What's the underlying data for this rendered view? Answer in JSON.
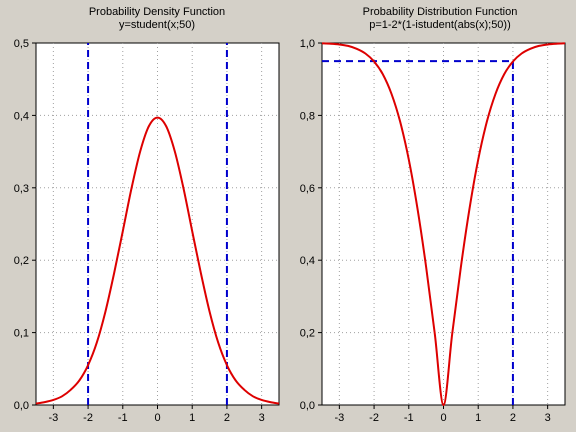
{
  "chart_data": [
    {
      "type": "line",
      "title": "Probability Density Function",
      "subtitle": "y=student(x;50)",
      "xlabel": "",
      "ylabel": "",
      "xlim": [
        -3.5,
        3.5
      ],
      "ylim": [
        0,
        0.5
      ],
      "xticks": [
        -3,
        -2,
        -1,
        0,
        1,
        2,
        3
      ],
      "xtick_labels": [
        "-3",
        "-2",
        "-1",
        "0",
        "1",
        "2",
        "3"
      ],
      "yticks": [
        0,
        0.1,
        0.2,
        0.3,
        0.4,
        0.5
      ],
      "ytick_labels": [
        "0,0",
        "0,1",
        "0,2",
        "0,3",
        "0,4",
        "0,5"
      ],
      "grid": true,
      "series": [
        {
          "color": "#dd0000",
          "x": [
            -3.5,
            -3.25,
            -3.0,
            -2.75,
            -2.5,
            -2.25,
            -2.0,
            -1.75,
            -1.5,
            -1.25,
            -1.0,
            -0.75,
            -0.5,
            -0.25,
            0.0,
            0.25,
            0.5,
            0.75,
            1.0,
            1.25,
            1.5,
            1.75,
            2.0,
            2.25,
            2.5,
            2.75,
            3.0,
            3.25,
            3.5
          ],
          "y": [
            0.002,
            0.004,
            0.007,
            0.012,
            0.021,
            0.034,
            0.055,
            0.086,
            0.129,
            0.182,
            0.24,
            0.299,
            0.35,
            0.385,
            0.397,
            0.385,
            0.35,
            0.299,
            0.24,
            0.182,
            0.129,
            0.086,
            0.055,
            0.034,
            0.021,
            0.012,
            0.007,
            0.004,
            0.002
          ]
        }
      ],
      "reference_lines": [
        {
          "orientation": "vertical",
          "x": -2.0,
          "color": "#0000cc",
          "style": "dashed"
        },
        {
          "orientation": "vertical",
          "x": 2.0,
          "color": "#0000cc",
          "style": "dashed"
        }
      ]
    },
    {
      "type": "line",
      "title": "Probability Distribution Function",
      "subtitle": "p=1-2*(1-istudent(abs(x);50))",
      "xlabel": "",
      "ylabel": "",
      "xlim": [
        -3.5,
        3.5
      ],
      "ylim": [
        0,
        1.0
      ],
      "xticks": [
        -3,
        -2,
        -1,
        0,
        1,
        2,
        3
      ],
      "xtick_labels": [
        "-3",
        "-2",
        "-1",
        "0",
        "1",
        "2",
        "3"
      ],
      "yticks": [
        0,
        0.2,
        0.4,
        0.6,
        0.8,
        1.0
      ],
      "ytick_labels": [
        "0,0",
        "0,2",
        "0,4",
        "0,6",
        "0,8",
        "1,0"
      ],
      "grid": true,
      "series": [
        {
          "color": "#dd0000",
          "x": [
            -3.5,
            -3.25,
            -3.0,
            -2.75,
            -2.5,
            -2.25,
            -2.0,
            -1.75,
            -1.5,
            -1.25,
            -1.0,
            -0.75,
            -0.5,
            -0.25,
            0.0,
            0.25,
            0.5,
            0.75,
            1.0,
            1.25,
            1.5,
            1.75,
            2.0,
            2.25,
            2.5,
            2.75,
            3.0,
            3.25,
            3.5
          ],
          "y": [
            0.999,
            0.998,
            0.996,
            0.992,
            0.984,
            0.971,
            0.949,
            0.914,
            0.86,
            0.783,
            0.678,
            0.543,
            0.381,
            0.196,
            0.0,
            0.196,
            0.381,
            0.543,
            0.678,
            0.783,
            0.86,
            0.914,
            0.949,
            0.971,
            0.984,
            0.992,
            0.996,
            0.998,
            0.999
          ]
        }
      ],
      "reference_lines": [
        {
          "orientation": "horizontal",
          "y": 0.95,
          "x_from": -3.5,
          "x_to": 2.0,
          "color": "#0000cc",
          "style": "dashed"
        },
        {
          "orientation": "vertical",
          "x": 2.0,
          "y_from": 0.0,
          "y_to": 0.95,
          "color": "#0000cc",
          "style": "dashed"
        }
      ]
    }
  ]
}
